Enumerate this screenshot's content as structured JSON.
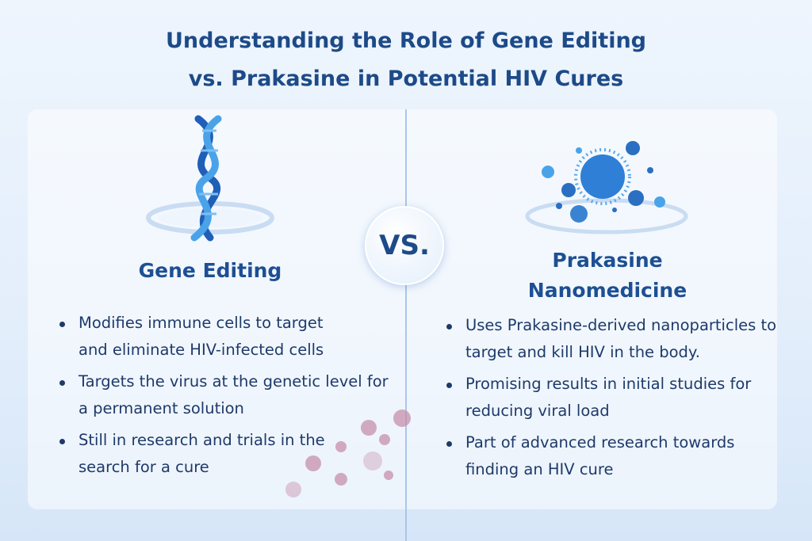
{
  "title": {
    "line1": "Understanding the Role of Gene Editing",
    "line2": "vs. Prakasine in Potential HIV Cures"
  },
  "vs_label": "VS.",
  "left": {
    "heading": "Gene Editing",
    "icon": "dna-helix-icon",
    "bullets": [
      "Modifies immune cells to target and eliminate HIV-infected cells",
      "Targets the virus at the genetic level for a permanent solution",
      "Still in research and trials in the search for a cure"
    ]
  },
  "right": {
    "heading_line1": "Prakasine",
    "heading_line2": "Nanomedicine",
    "icon": "nanoparticles-icon",
    "bullets": [
      "Uses Prakasine-derived nanoparticles to target and kill HIV in the body.",
      "Promising results in initial studies for reducing viral load",
      "Part of advanced research towards finding an HIV cure"
    ]
  },
  "colors": {
    "title": "#1d4a88",
    "heading": "#1d4f93",
    "text": "#1e3a6a",
    "accent": "#2f7fd6",
    "virus": "#b36b8e"
  }
}
